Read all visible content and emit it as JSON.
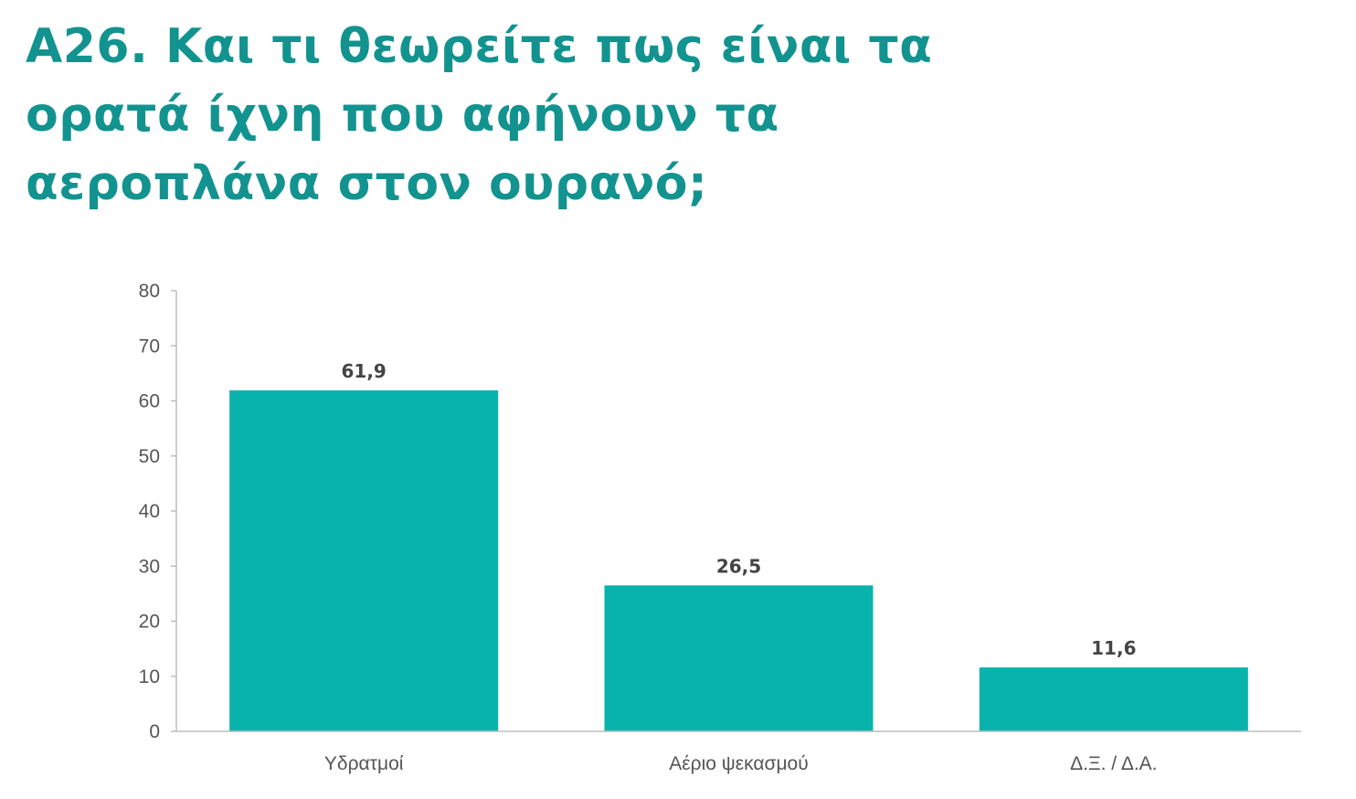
{
  "colors": {
    "title": "#12938f",
    "bar": "#08b3ac",
    "axis": "#bdbdbd",
    "text": "#555555"
  },
  "chart_data": {
    "type": "bar",
    "title": "Α26. Και τι θεωρείτε πως είναι τα ορατά ίχνη που αφήνουν τα αεροπλάνα στον ουρανό;",
    "xlabel": "",
    "ylabel": "",
    "categories": [
      "Υδρατμοί",
      "Αέριο ψεκασμού",
      "Δ.Ξ. / Δ.Α."
    ],
    "values": [
      61.9,
      26.5,
      11.6
    ],
    "data_labels": [
      "61,9",
      "26,5",
      "11,6"
    ],
    "ylim": [
      0,
      80
    ],
    "yticks": [
      0,
      10,
      20,
      30,
      40,
      50,
      60,
      70,
      80
    ],
    "grid": false,
    "legend": "none"
  }
}
